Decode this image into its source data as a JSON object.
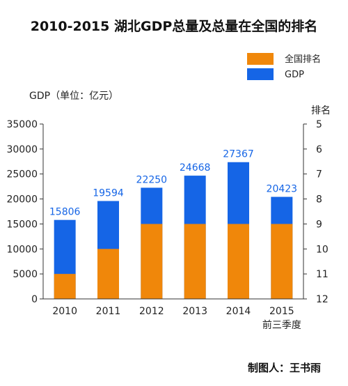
{
  "chart_data": {
    "type": "bar",
    "title": "2010-2015 湖北GDP总量及总量在全国的排名",
    "ylabel": "GDP（单位：亿元）",
    "y2label": "排名",
    "categories": [
      "2010",
      "2011",
      "2012",
      "2013",
      "2014",
      "2015"
    ],
    "category_sublabels": [
      "",
      "",
      "",
      "",
      "",
      "前三季度"
    ],
    "ylim": [
      0,
      35000
    ],
    "yticks": [
      0,
      5000,
      10000,
      15000,
      20000,
      25000,
      30000,
      35000
    ],
    "y2lim": [
      12,
      5
    ],
    "y2ticks": [
      5,
      6,
      7,
      8,
      9,
      10,
      11,
      12
    ],
    "legend_position": "top-right",
    "grid": false,
    "series": [
      {
        "name": "全国排名",
        "axis": "right",
        "color": "#f0870a",
        "values": [
          11,
          10,
          9,
          9,
          9,
          9
        ]
      },
      {
        "name": "GDP",
        "axis": "left",
        "color": "#1565e6",
        "values": [
          15806,
          19594,
          22250,
          24668,
          27367,
          20423
        ],
        "data_labels": [
          "15806",
          "19594",
          "22250",
          "24668",
          "27367",
          "20423"
        ]
      }
    ]
  },
  "credit": "制图人：王书雨"
}
